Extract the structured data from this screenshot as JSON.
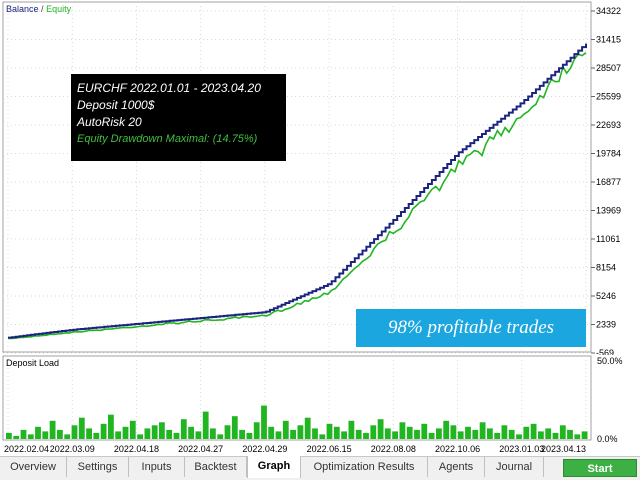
{
  "legend": {
    "balance": "Balance",
    "separator": "/",
    "equity": "Equity"
  },
  "info": {
    "line1": "EURCHF 2022.01.01 - 2023.04.20",
    "line2": "Deposit 1000$",
    "line3": "AutoRisk 20",
    "line4": "Equity Drawdown Maximal: (14.75%)"
  },
  "banner": "98% profitable trades",
  "deposit_load": {
    "label": "Deposit Load",
    "top_label": "50.0%",
    "bottom_label": "0.0%"
  },
  "tabs": [
    {
      "label": "Overview"
    },
    {
      "label": "Settings"
    },
    {
      "label": "Inputs"
    },
    {
      "label": "Backtest"
    },
    {
      "label": "Graph"
    },
    {
      "label": "Optimization Results"
    },
    {
      "label": "Agents"
    },
    {
      "label": "Journal"
    }
  ],
  "start_label": "Start",
  "colors": {
    "balance": "#1a237e",
    "equity": "#22b522",
    "banner": "#1ca6e0",
    "start": "#3cb043"
  },
  "chart_data": [
    {
      "type": "line",
      "title": "",
      "y_ticks": [
        "34322",
        "31415",
        "28507",
        "25599",
        "22693",
        "19784",
        "16877",
        "13969",
        "11061",
        "8154",
        "5246",
        "2339",
        "-569"
      ],
      "x": [
        "2022.02.04",
        "2022.03.09",
        "2022.04.18",
        "2022.04.27",
        "2022.04.29",
        "2022.06.15",
        "2022.08.08",
        "2022.10.06",
        "2023.01.03",
        "2023.04.13"
      ],
      "ylim": [
        -569,
        34322
      ],
      "series": [
        {
          "name": "Balance",
          "values": [
            1000,
            1800,
            2400,
            3000,
            3600,
            6500,
            13000,
            19800,
            25000,
            31000
          ]
        },
        {
          "name": "Equity",
          "values": [
            900,
            1600,
            2200,
            2800,
            3300,
            5800,
            12200,
            19000,
            24300,
            31800
          ]
        }
      ],
      "grid": true,
      "legend": "top-left"
    },
    {
      "type": "bar",
      "title": "Deposit Load",
      "ylim": [
        0,
        50
      ],
      "values": [
        4,
        2,
        6,
        3,
        8,
        5,
        12,
        6,
        3,
        9,
        14,
        7,
        4,
        10,
        16,
        5,
        8,
        12,
        3,
        7,
        9,
        11,
        6,
        4,
        13,
        8,
        5,
        18,
        7,
        3,
        9,
        15,
        6,
        4,
        11,
        22,
        8,
        5,
        12,
        6,
        9,
        14,
        7,
        3,
        10,
        8,
        5,
        12,
        6,
        4,
        9,
        13,
        7,
        5,
        11,
        8,
        6,
        10,
        4,
        7,
        12,
        9,
        5,
        8,
        6,
        11,
        7,
        4,
        9,
        6,
        3,
        8,
        10,
        5,
        7,
        4,
        9,
        6,
        3,
        5
      ]
    }
  ]
}
